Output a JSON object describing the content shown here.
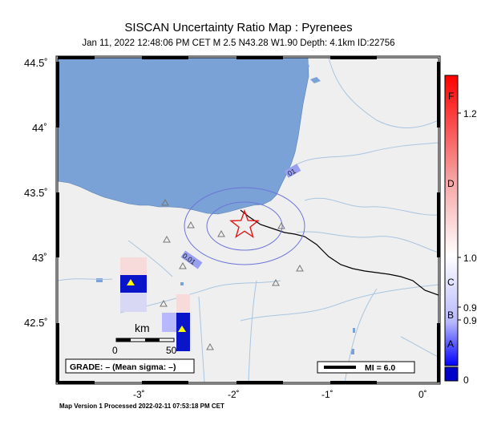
{
  "map": {
    "title": "SISCAN Uncertainty Ratio Map : Pyrenees",
    "subtitle": "Jan 11, 2022 12:48:06 PM CET   M 2.5   N43.28 W1.90   Depth: 4.1km   ID:22756",
    "footer": "Map Version 1 Processed 2022-02-11 07:53:18 PM CET",
    "lat_labels": [
      "44.5˚",
      "44˚",
      "43.5˚",
      "43˚",
      "42.5˚"
    ],
    "lon_labels": [
      "-3˚",
      "-2˚",
      "-1˚",
      "0˚"
    ],
    "contour_labels": [
      "01",
      "0.01"
    ],
    "scale_bar": {
      "unit": "km",
      "ticks": [
        "0",
        "50"
      ]
    },
    "grade_text": "GRADE: – (Mean sigma: –)",
    "mi_text": "MI = 6.0",
    "epicenter": {
      "lat": 43.28,
      "lon": -1.9,
      "symbol": "star"
    },
    "colors": {
      "sea": "#7aa2d6",
      "land": "#efefef",
      "rivers": "#a9c5e0",
      "contour": "#6b74d8",
      "border": "#000000",
      "epicenter": "#e01818",
      "station_marker": "#ffff00"
    }
  },
  "colorbar": {
    "grades": [
      "F",
      "D",
      "C",
      "B",
      "A"
    ],
    "values": [
      "1.2",
      "1.0",
      "0.9",
      "0.9",
      "0"
    ],
    "colors": {
      "top": "#ff0000",
      "mid": "#ffffff",
      "bottom": "#0000ff",
      "base": "#0000c8"
    }
  }
}
